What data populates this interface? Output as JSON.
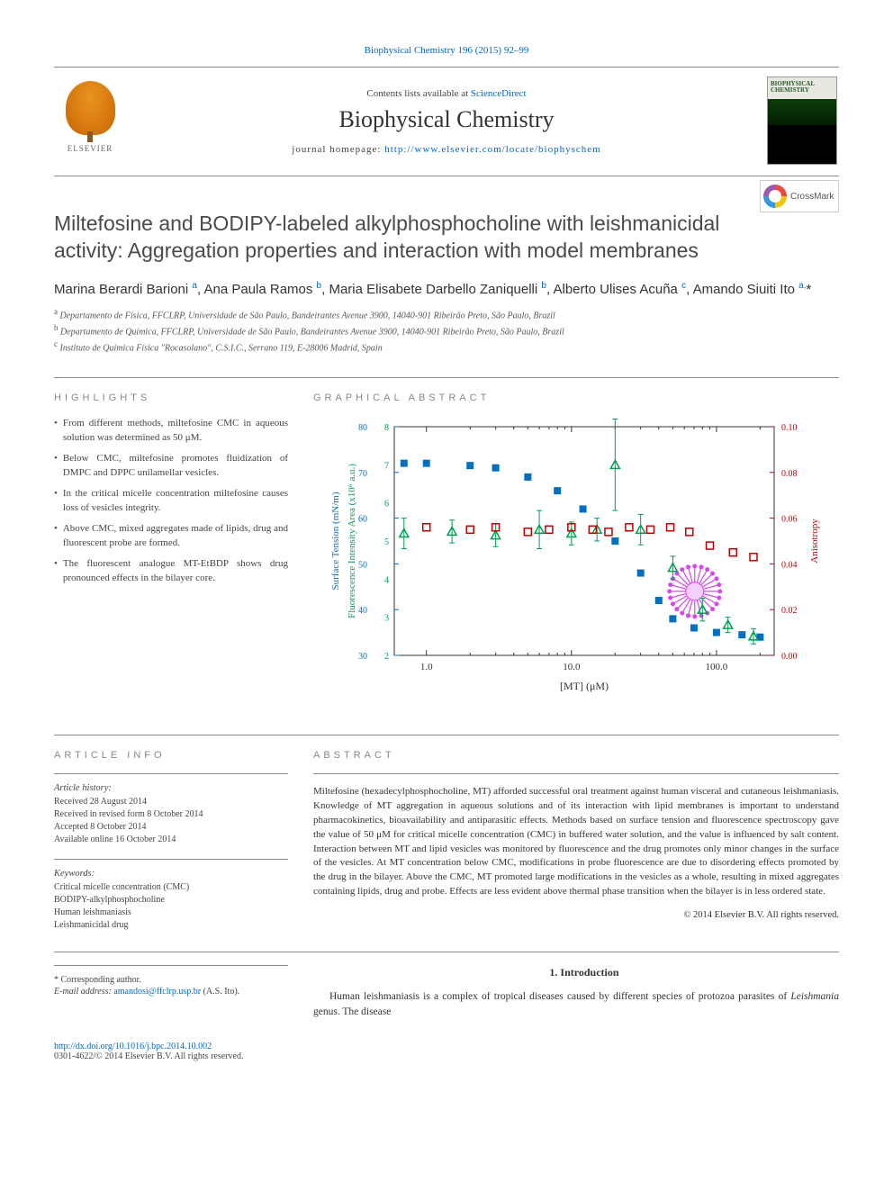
{
  "top_link": {
    "text": "Biophysical Chemistry 196 (2015) 92–99",
    "href": "#"
  },
  "header": {
    "elsevier_label": "ELSEVIER",
    "contents_prefix": "Contents lists available at ",
    "contents_link": "ScienceDirect",
    "journal_name": "Biophysical Chemistry",
    "homepage_prefix": "journal homepage: ",
    "homepage_link": "http://www.elsevier.com/locate/biophyschem",
    "cover_title": "BIOPHYSICAL\nCHEMISTRY"
  },
  "crossmark": "CrossMark",
  "title": "Miltefosine and BODIPY-labeled alkylphosphocholine with leishmanicidal activity: Aggregation properties and interaction with model membranes",
  "authors_html": "Marina Berardi Barioni <sup><a href=\"#\">a</a></sup>, Ana Paula Ramos <sup><a href=\"#\">b</a></sup>, Maria Elisabete Darbello Zaniquelli <sup><a href=\"#\">b</a></sup>, Alberto Ulises Acuña <sup><a href=\"#\">c</a></sup>, Amando Siuiti Ito <sup><a href=\"#\">a,</a></sup>*",
  "affiliations": [
    "a Departamento de Física, FFCLRP, Universidade de São Paulo, Bandeirantes Avenue 3900, 14040-901 Ribeirão Preto, São Paulo, Brazil",
    "b Departamento de Química, FFCLRP, Universidade de São Paulo, Bandeirantes Avenue 3900, 14040-901 Ribeirão Preto, São Paulo, Brazil",
    "c Instituto de Química Física \"Rocasolano\", C.S.I.C., Serrano 119, E-28006 Madrid, Spain"
  ],
  "highlights": {
    "heading": "HIGHLIGHTS",
    "items": [
      "From different methods, miltefosine CMC in aqueous solution was determined as 50 μM.",
      "Below CMC, miltefosine promotes fluidization of DMPC and DPPC unilamellar vesicles.",
      "In the critical micelle concentration miltefosine causes loss of vesicles integrity.",
      "Above CMC, mixed aggregates made of lipids, drug and fluorescent probe are formed.",
      "The fluorescent analogue MT-EtBDP shows drug pronounced effects in the bilayer core."
    ]
  },
  "graphical_abstract": {
    "heading": "GRAPHICAL ABSTRACT",
    "chart": {
      "type": "multi-axis-scatter",
      "x_axis_label": "[MT] (μM)",
      "x_scale": "log",
      "x_ticks": [
        1.0,
        10.0,
        100.0
      ],
      "x_tick_labels": [
        "1.0",
        "10.0",
        "100.0"
      ],
      "y_left1_label": "Surface Tension (mN/m)",
      "y_left1_color": "#0070c0",
      "y_left1_range": [
        30,
        80
      ],
      "y_left1_ticks": [
        30,
        40,
        50,
        60,
        70,
        80
      ],
      "y_left2_label": "Fluorescence Intensity Area (x10⁶ a.u.)",
      "y_left2_color": "#00a050",
      "y_left2_range": [
        2,
        8
      ],
      "y_left2_ticks": [
        2,
        3,
        4,
        5,
        6,
        7,
        8
      ],
      "y_right_label": "Anisotropy",
      "y_right_color": "#c00000",
      "y_right_range": [
        0.0,
        0.1
      ],
      "y_right_ticks": [
        0.0,
        0.02,
        0.04,
        0.06,
        0.08,
        0.1
      ],
      "background_color": "#ffffff",
      "series": [
        {
          "name": "surface_tension",
          "marker": "square-filled",
          "color": "#0070c0",
          "axis": "y_left1",
          "points": [
            {
              "x": 0.7,
              "y": 72
            },
            {
              "x": 1.0,
              "y": 72
            },
            {
              "x": 2.0,
              "y": 71.5
            },
            {
              "x": 3.0,
              "y": 71
            },
            {
              "x": 5.0,
              "y": 69
            },
            {
              "x": 8.0,
              "y": 66
            },
            {
              "x": 12.0,
              "y": 62
            },
            {
              "x": 20.0,
              "y": 55
            },
            {
              "x": 30.0,
              "y": 48
            },
            {
              "x": 40.0,
              "y": 42
            },
            {
              "x": 50.0,
              "y": 38
            },
            {
              "x": 70.0,
              "y": 36
            },
            {
              "x": 100.0,
              "y": 35
            },
            {
              "x": 150.0,
              "y": 34.5
            },
            {
              "x": 200.0,
              "y": 34
            }
          ]
        },
        {
          "name": "fluorescence",
          "marker": "triangle-open",
          "color": "#00a050",
          "axis": "y_left2",
          "error_bars": true,
          "points": [
            {
              "x": 0.7,
              "y": 5.2,
              "err": 0.4
            },
            {
              "x": 1.5,
              "y": 5.25,
              "err": 0.3
            },
            {
              "x": 3.0,
              "y": 5.15,
              "err": 0.3
            },
            {
              "x": 6.0,
              "y": 5.3,
              "err": 0.5
            },
            {
              "x": 10.0,
              "y": 5.2,
              "err": 0.3
            },
            {
              "x": 15.0,
              "y": 5.3,
              "err": 0.3
            },
            {
              "x": 20.0,
              "y": 7.0,
              "err": 1.2
            },
            {
              "x": 30.0,
              "y": 5.3,
              "err": 0.4
            },
            {
              "x": 50.0,
              "y": 4.3,
              "err": 0.3
            },
            {
              "x": 80.0,
              "y": 3.2,
              "err": 0.3
            },
            {
              "x": 120.0,
              "y": 2.8,
              "err": 0.2
            },
            {
              "x": 180.0,
              "y": 2.5,
              "err": 0.2
            }
          ]
        },
        {
          "name": "anisotropy",
          "marker": "square-open",
          "color": "#c00000",
          "axis": "y_right",
          "points": [
            {
              "x": 1.0,
              "y": 0.056
            },
            {
              "x": 2.0,
              "y": 0.055
            },
            {
              "x": 3.0,
              "y": 0.056
            },
            {
              "x": 5.0,
              "y": 0.054
            },
            {
              "x": 7.0,
              "y": 0.055
            },
            {
              "x": 10.0,
              "y": 0.056
            },
            {
              "x": 14.0,
              "y": 0.055
            },
            {
              "x": 18.0,
              "y": 0.054
            },
            {
              "x": 25.0,
              "y": 0.056
            },
            {
              "x": 35.0,
              "y": 0.055
            },
            {
              "x": 48.0,
              "y": 0.056
            },
            {
              "x": 65.0,
              "y": 0.054
            },
            {
              "x": 90.0,
              "y": 0.048
            },
            {
              "x": 130.0,
              "y": 0.045
            },
            {
              "x": 180.0,
              "y": 0.043
            }
          ]
        }
      ],
      "micelle_inset": {
        "cx_log": 1.85,
        "cy_aniso": 0.028,
        "outer_r": 28,
        "inner_r": 10,
        "color": "#d946ef"
      }
    }
  },
  "article_info": {
    "heading": "ARTICLE INFO",
    "history_head": "Article history:",
    "history": [
      "Received 28 August 2014",
      "Received in revised form 8 October 2014",
      "Accepted 8 October 2014",
      "Available online 16 October 2014"
    ],
    "keywords_head": "Keywords:",
    "keywords": [
      "Critical micelle concentration (CMC)",
      "BODIPY-alkylphosphocholine",
      "Human leishmaniasis",
      "Leishmanicidal drug"
    ]
  },
  "abstract": {
    "heading": "ABSTRACT",
    "text": "Miltefosine (hexadecylphosphocholine, MT) afforded successful oral treatment against human visceral and cutaneous leishmaniasis. Knowledge of MT aggregation in aqueous solutions and of its interaction with lipid membranes is important to understand pharmacokinetics, bioavailability and antiparasitic effects. Methods based on surface tension and fluorescence spectroscopy gave the value of 50 μM for critical micelle concentration (CMC) in buffered water solution, and the value is influenced by salt content. Interaction between MT and lipid vesicles was monitored by fluorescence and the drug promotes only minor changes in the surface of the vesicles. At MT concentration below CMC, modifications in probe fluorescence are due to disordering effects promoted by the drug in the bilayer. Above the CMC, MT promoted large modifications in the vesicles as a whole, resulting in mixed aggregates containing lipids, drug and probe. Effects are less evident above thermal phase transition when the bilayer is in less ordered state.",
    "copyright": "© 2014 Elsevier B.V. All rights reserved."
  },
  "intro": {
    "heading": "1. Introduction",
    "paragraph": "Human leishmaniasis is a complex of tropical diseases caused by different species of protozoa parasites of Leishmania genus. The disease"
  },
  "corresponding": {
    "label": "* Corresponding author.",
    "email_label": "E-mail address:",
    "email": "amandosi@ffclrp.usp.br",
    "email_suffix": " (A.S. Ito)."
  },
  "footer": {
    "doi": "http://dx.doi.org/10.1016/j.bpc.2014.10.002",
    "issn_line": "0301-4622/© 2014 Elsevier B.V. All rights reserved."
  }
}
